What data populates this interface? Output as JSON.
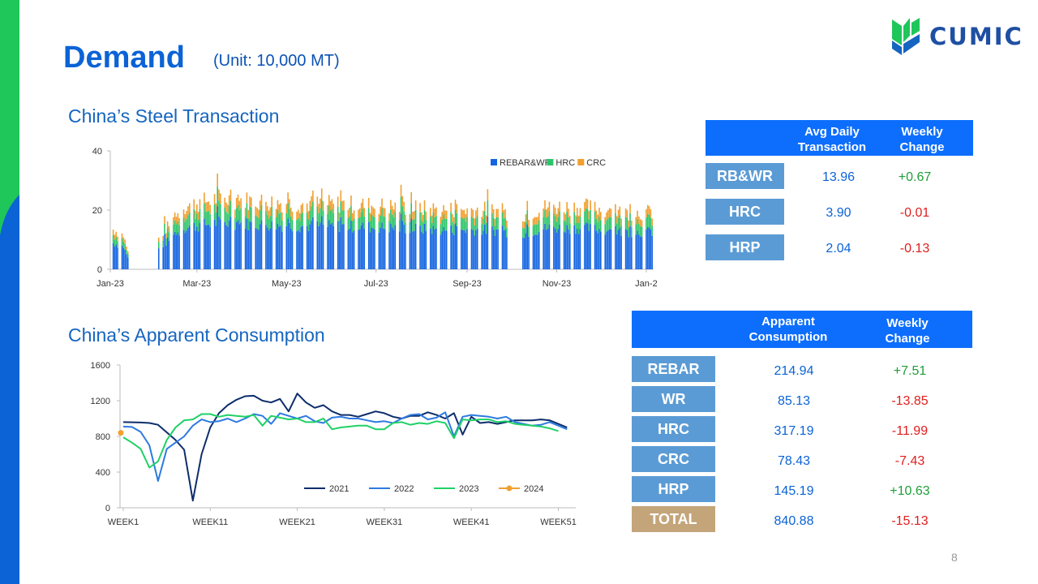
{
  "header": {
    "title": "Demand",
    "unit": "(Unit: 10,000 MT)",
    "logo_text": "CUMIC"
  },
  "page_number": "8",
  "colors": {
    "blue": "#0b63d6",
    "green": "#1fc65a",
    "row_label": "#5b9bd5",
    "total_label": "#c4a57a",
    "pos": "#1e9e3a",
    "neg": "#e11d1d"
  },
  "chart_data": [
    {
      "type": "bar",
      "title": "China’s Steel Transaction",
      "stacked": true,
      "ylim": [
        0,
        40
      ],
      "yticks": [
        0,
        20,
        40
      ],
      "xlim": [
        "2023-01-01",
        "2024-01-06"
      ],
      "xticks": [
        "Jan-23",
        "Mar-23",
        "May-23",
        "Jul-23",
        "Sep-23",
        "Nov-23",
        "Jan-2"
      ],
      "legend_position": "top-right",
      "series": [
        {
          "name": "REBAR&WR",
          "color": "#1565e0"
        },
        {
          "name": "HRC",
          "color": "#2ec56a"
        },
        {
          "name": "CRC",
          "color": "#f0a030"
        }
      ],
      "trading_day_gaps": [
        [
          "2023-01-16",
          "2023-02-02"
        ],
        [
          "2023-09-29",
          "2023-10-08"
        ]
      ],
      "total_profile": [
        [
          "2023-01-03",
          14
        ],
        [
          "2023-01-10",
          12
        ],
        [
          "2023-01-13",
          6
        ],
        [
          "2023-02-03",
          11
        ],
        [
          "2023-02-20",
          22
        ],
        [
          "2023-03-15",
          25
        ],
        [
          "2023-04-10",
          24
        ],
        [
          "2023-05-10",
          23
        ],
        [
          "2023-06-10",
          23
        ],
        [
          "2023-07-15",
          22
        ],
        [
          "2023-08-15",
          21
        ],
        [
          "2023-09-15",
          21
        ],
        [
          "2023-09-28",
          20
        ],
        [
          "2023-10-09",
          19
        ],
        [
          "2023-10-25",
          22
        ],
        [
          "2023-11-20",
          22
        ],
        [
          "2023-12-15",
          20
        ],
        [
          "2024-01-05",
          20
        ]
      ]
    },
    {
      "type": "line",
      "title": "China’s Apparent Consumption",
      "ylim": [
        0,
        1600
      ],
      "yticks": [
        0,
        400,
        800,
        1200,
        1600
      ],
      "xlim": [
        1,
        53
      ],
      "xticks": [
        "WEEK1",
        "WEEK11",
        "WEEK21",
        "WEEK31",
        "WEEK41",
        "WEEK51"
      ],
      "legend_position": "lower-center",
      "series": [
        {
          "name": "2021",
          "color": "#0d2d6b",
          "points": [
            [
              1,
              960
            ],
            [
              3,
              955
            ],
            [
              4,
              950
            ],
            [
              5,
              930
            ],
            [
              7,
              760
            ],
            [
              8,
              650
            ],
            [
              9,
              80
            ],
            [
              10,
              600
            ],
            [
              11,
              900
            ],
            [
              12,
              1060
            ],
            [
              13,
              1150
            ],
            [
              14,
              1210
            ],
            [
              15,
              1250
            ],
            [
              16,
              1255
            ],
            [
              17,
              1200
            ],
            [
              18,
              1180
            ],
            [
              19,
              1220
            ],
            [
              20,
              1080
            ],
            [
              21,
              1280
            ],
            [
              22,
              1180
            ],
            [
              23,
              1120
            ],
            [
              24,
              1150
            ],
            [
              25,
              1080
            ],
            [
              26,
              1040
            ],
            [
              27,
              1040
            ],
            [
              28,
              1020
            ],
            [
              29,
              1050
            ],
            [
              30,
              1080
            ],
            [
              31,
              1060
            ],
            [
              32,
              1020
            ],
            [
              33,
              1000
            ],
            [
              34,
              1030
            ],
            [
              35,
              1030
            ],
            [
              36,
              1070
            ],
            [
              37,
              1040
            ],
            [
              38,
              1000
            ],
            [
              39,
              1060
            ],
            [
              40,
              820
            ],
            [
              41,
              1020
            ],
            [
              42,
              950
            ],
            [
              43,
              960
            ],
            [
              44,
              940
            ],
            [
              45,
              960
            ],
            [
              46,
              980
            ],
            [
              47,
              980
            ],
            [
              48,
              980
            ],
            [
              49,
              990
            ],
            [
              50,
              980
            ],
            [
              51,
              940
            ],
            [
              52,
              900
            ]
          ]
        },
        {
          "name": "2022",
          "color": "#2d7ae0",
          "points": [
            [
              1,
              910
            ],
            [
              2,
              905
            ],
            [
              3,
              850
            ],
            [
              4,
              700
            ],
            [
              5,
              300
            ],
            [
              6,
              660
            ],
            [
              7,
              730
            ],
            [
              8,
              800
            ],
            [
              9,
              920
            ],
            [
              10,
              990
            ],
            [
              11,
              960
            ],
            [
              12,
              970
            ],
            [
              13,
              1000
            ],
            [
              14,
              960
            ],
            [
              15,
              1000
            ],
            [
              16,
              1050
            ],
            [
              17,
              1030
            ],
            [
              18,
              940
            ],
            [
              19,
              1060
            ],
            [
              20,
              1030
            ],
            [
              21,
              1000
            ],
            [
              22,
              1030
            ],
            [
              23,
              970
            ],
            [
              24,
              950
            ],
            [
              25,
              1010
            ],
            [
              26,
              1020
            ],
            [
              27,
              1000
            ],
            [
              28,
              1000
            ],
            [
              29,
              980
            ],
            [
              30,
              960
            ],
            [
              31,
              970
            ],
            [
              32,
              950
            ],
            [
              33,
              1000
            ],
            [
              34,
              1040
            ],
            [
              35,
              1050
            ],
            [
              36,
              990
            ],
            [
              37,
              1010
            ],
            [
              38,
              1070
            ],
            [
              39,
              800
            ],
            [
              40,
              1020
            ],
            [
              41,
              1040
            ],
            [
              42,
              1030
            ],
            [
              43,
              1020
            ],
            [
              44,
              1000
            ],
            [
              45,
              1020
            ],
            [
              46,
              960
            ],
            [
              47,
              940
            ],
            [
              48,
              920
            ],
            [
              49,
              930
            ],
            [
              50,
              960
            ],
            [
              51,
              920
            ],
            [
              52,
              880
            ]
          ]
        },
        {
          "name": "2023",
          "color": "#1fd166",
          "points": [
            [
              1,
              790
            ],
            [
              2,
              730
            ],
            [
              3,
              660
            ],
            [
              4,
              450
            ],
            [
              5,
              520
            ],
            [
              6,
              760
            ],
            [
              7,
              900
            ],
            [
              8,
              980
            ],
            [
              9,
              990
            ],
            [
              10,
              1050
            ],
            [
              11,
              1050
            ],
            [
              12,
              1020
            ],
            [
              13,
              1040
            ],
            [
              14,
              1030
            ],
            [
              15,
              1020
            ],
            [
              16,
              1040
            ],
            [
              17,
              920
            ],
            [
              18,
              1030
            ],
            [
              19,
              1010
            ],
            [
              20,
              990
            ],
            [
              21,
              1000
            ],
            [
              22,
              960
            ],
            [
              23,
              960
            ],
            [
              24,
              1000
            ],
            [
              25,
              880
            ],
            [
              26,
              900
            ],
            [
              27,
              910
            ],
            [
              28,
              920
            ],
            [
              29,
              920
            ],
            [
              30,
              880
            ],
            [
              31,
              880
            ],
            [
              32,
              950
            ],
            [
              33,
              960
            ],
            [
              34,
              930
            ],
            [
              35,
              950
            ],
            [
              36,
              940
            ],
            [
              37,
              970
            ],
            [
              38,
              950
            ],
            [
              39,
              780
            ],
            [
              40,
              990
            ],
            [
              41,
              980
            ],
            [
              42,
              990
            ],
            [
              43,
              990
            ],
            [
              44,
              960
            ],
            [
              45,
              970
            ],
            [
              46,
              940
            ],
            [
              47,
              930
            ],
            [
              48,
              920
            ],
            [
              49,
              910
            ],
            [
              50,
              890
            ],
            [
              51,
              860
            ]
          ]
        },
        {
          "name": "2024",
          "color": "#f0a030",
          "points": [
            [
              1,
              840
            ]
          ]
        }
      ]
    }
  ],
  "transaction_table": {
    "headers": [
      "Avg Daily Transaction",
      "Weekly Change"
    ],
    "rows": [
      {
        "label": "RB&WR",
        "value": "13.96",
        "change": "+0.67"
      },
      {
        "label": "HRC",
        "value": "3.90",
        "change": "-0.01"
      },
      {
        "label": "HRP",
        "value": "2.04",
        "change": "-0.13"
      }
    ]
  },
  "consumption_table": {
    "headers": [
      "Apparent Consumption",
      "Weekly Change"
    ],
    "rows": [
      {
        "label": "REBAR",
        "value": "214.94",
        "change": "+7.51"
      },
      {
        "label": "WR",
        "value": "85.13",
        "change": "-13.85"
      },
      {
        "label": "HRC",
        "value": "317.19",
        "change": "-11.99"
      },
      {
        "label": "CRC",
        "value": "78.43",
        "change": "-7.43"
      },
      {
        "label": "HRP",
        "value": "145.19",
        "change": "+10.63"
      },
      {
        "label": "TOTAL",
        "value": "840.88",
        "change": "-15.13"
      }
    ]
  }
}
